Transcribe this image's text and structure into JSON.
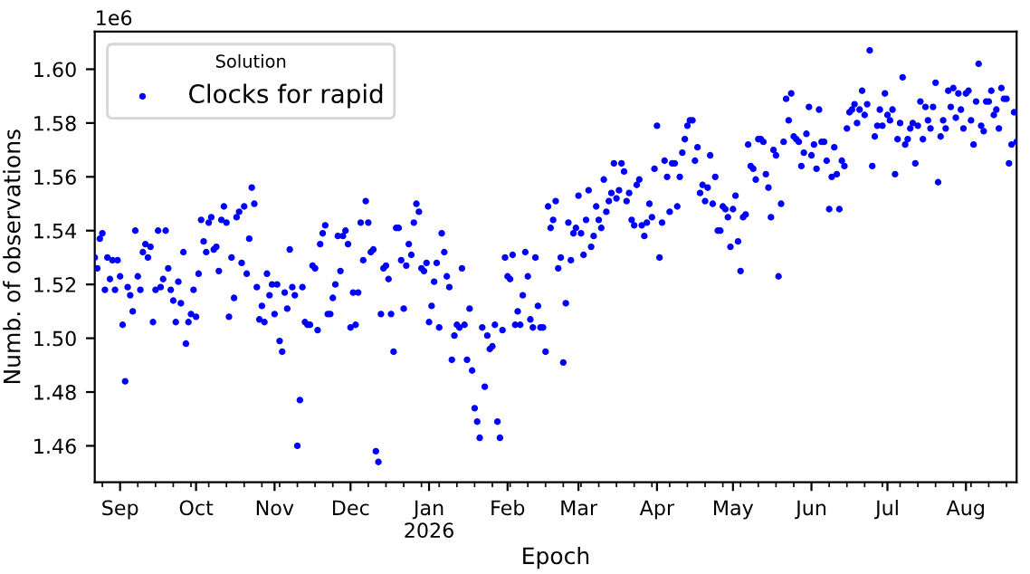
{
  "chart_data": {
    "type": "scatter",
    "xlabel": "Epoch",
    "ylabel": "Numb. of observations",
    "legend_title": "Solution",
    "legend": "top left",
    "marker": "circle",
    "grid": false,
    "annotations": [
      "1e6"
    ],
    "xlim": [
      "2025-08-22",
      "2026-08-21"
    ],
    "xticks": [
      {
        "value": "2025-09-01",
        "label": "Sep"
      },
      {
        "value": "2025-10-01",
        "label": "Oct"
      },
      {
        "value": "2025-11-01",
        "label": "Nov"
      },
      {
        "value": "2025-12-01",
        "label": "Dec"
      },
      {
        "value": "2026-01-01",
        "label": "Jan\n2026"
      },
      {
        "value": "2026-02-01",
        "label": "Feb"
      },
      {
        "value": "2026-03-01",
        "label": "Mar"
      },
      {
        "value": "2026-04-01",
        "label": "Apr"
      },
      {
        "value": "2026-05-01",
        "label": "May"
      },
      {
        "value": "2026-06-01",
        "label": "Jun"
      },
      {
        "value": "2026-07-01",
        "label": "Jul"
      },
      {
        "value": "2026-08-01",
        "label": "Aug"
      }
    ],
    "ylim": [
      1.4465,
      1.614
    ],
    "yticks": [
      {
        "value": 1.46,
        "label": "1.46"
      },
      {
        "value": 1.48,
        "label": "1.48"
      },
      {
        "value": 1.5,
        "label": "1.50"
      },
      {
        "value": 1.52,
        "label": "1.52"
      },
      {
        "value": 1.54,
        "label": "1.54"
      },
      {
        "value": 1.56,
        "label": "1.56"
      },
      {
        "value": 1.58,
        "label": "1.58"
      },
      {
        "value": 1.6,
        "label": "1.60"
      }
    ],
    "series": [
      {
        "name": "Clocks for rapid",
        "color": "#0000ff",
        "x": [
          "2025-08-22",
          "2025-08-23",
          "2025-08-24",
          "2025-08-25",
          "2025-08-26",
          "2025-08-27",
          "2025-08-28",
          "2025-08-29",
          "2025-08-30",
          "2025-08-31",
          "2025-09-01",
          "2025-09-02",
          "2025-09-03",
          "2025-09-04",
          "2025-09-05",
          "2025-09-06",
          "2025-09-07",
          "2025-09-08",
          "2025-09-09",
          "2025-09-10",
          "2025-09-11",
          "2025-09-12",
          "2025-09-13",
          "2025-09-14",
          "2025-09-15",
          "2025-09-16",
          "2025-09-17",
          "2025-09-18",
          "2025-09-19",
          "2025-09-20",
          "2025-09-21",
          "2025-09-22",
          "2025-09-23",
          "2025-09-24",
          "2025-09-25",
          "2025-09-26",
          "2025-09-27",
          "2025-09-28",
          "2025-09-29",
          "2025-09-30",
          "2025-10-01",
          "2025-10-02",
          "2025-10-03",
          "2025-10-04",
          "2025-10-05",
          "2025-10-06",
          "2025-10-07",
          "2025-10-08",
          "2025-10-09",
          "2025-10-10",
          "2025-10-11",
          "2025-10-12",
          "2025-10-13",
          "2025-10-14",
          "2025-10-15",
          "2025-10-16",
          "2025-10-17",
          "2025-10-18",
          "2025-10-19",
          "2025-10-20",
          "2025-10-21",
          "2025-10-22",
          "2025-10-23",
          "2025-10-24",
          "2025-10-25",
          "2025-10-26",
          "2025-10-27",
          "2025-10-28",
          "2025-10-29",
          "2025-10-30",
          "2025-10-31",
          "2025-11-01",
          "2025-11-02",
          "2025-11-03",
          "2025-11-04",
          "2025-11-05",
          "2025-11-06",
          "2025-11-07",
          "2025-11-08",
          "2025-11-09",
          "2025-11-10",
          "2025-11-11",
          "2025-11-12",
          "2025-11-13",
          "2025-11-14",
          "2025-11-15",
          "2025-11-16",
          "2025-11-17",
          "2025-11-18",
          "2025-11-19",
          "2025-11-20",
          "2025-11-21",
          "2025-11-22",
          "2025-11-23",
          "2025-11-24",
          "2025-11-25",
          "2025-11-26",
          "2025-11-27",
          "2025-11-28",
          "2025-11-29",
          "2025-11-30",
          "2025-12-01",
          "2025-12-02",
          "2025-12-03",
          "2025-12-04",
          "2025-12-05",
          "2025-12-06",
          "2025-12-07",
          "2025-12-08",
          "2025-12-09",
          "2025-12-10",
          "2025-12-11",
          "2025-12-12",
          "2025-12-13",
          "2025-12-14",
          "2025-12-15",
          "2025-12-16",
          "2025-12-17",
          "2025-12-18",
          "2025-12-19",
          "2025-12-20",
          "2025-12-21",
          "2025-12-22",
          "2025-12-23",
          "2025-12-24",
          "2025-12-25",
          "2025-12-26",
          "2025-12-27",
          "2025-12-28",
          "2025-12-29",
          "2025-12-30",
          "2025-12-31",
          "2026-01-01",
          "2026-01-02",
          "2026-01-03",
          "2026-01-04",
          "2026-01-05",
          "2026-01-06",
          "2026-01-07",
          "2026-01-08",
          "2026-01-09",
          "2026-01-10",
          "2026-01-11",
          "2026-01-12",
          "2026-01-13",
          "2026-01-14",
          "2026-01-15",
          "2026-01-16",
          "2026-01-17",
          "2026-01-18",
          "2026-01-19",
          "2026-01-20",
          "2026-01-21",
          "2026-01-22",
          "2026-01-23",
          "2026-01-24",
          "2026-01-25",
          "2026-01-26",
          "2026-01-27",
          "2026-01-28",
          "2026-01-29",
          "2026-01-30",
          "2026-01-31",
          "2026-02-01",
          "2026-02-02",
          "2026-02-03",
          "2026-02-04",
          "2026-02-05",
          "2026-02-06",
          "2026-02-07",
          "2026-02-08",
          "2026-02-09",
          "2026-02-10",
          "2026-02-11",
          "2026-02-12",
          "2026-02-13",
          "2026-02-14",
          "2026-02-15",
          "2026-02-16",
          "2026-02-17",
          "2026-02-18",
          "2026-02-19",
          "2026-02-20",
          "2026-02-21",
          "2026-02-22",
          "2026-02-23",
          "2026-02-24",
          "2026-02-25",
          "2026-02-26",
          "2026-02-27",
          "2026-02-28",
          "2026-03-01",
          "2026-03-02",
          "2026-03-03",
          "2026-03-04",
          "2026-03-05",
          "2026-03-06",
          "2026-03-07",
          "2026-03-08",
          "2026-03-09",
          "2026-03-10",
          "2026-03-11",
          "2026-03-12",
          "2026-03-13",
          "2026-03-14",
          "2026-03-15",
          "2026-03-16",
          "2026-03-17",
          "2026-03-18",
          "2026-03-19",
          "2026-03-20",
          "2026-03-21",
          "2026-03-22",
          "2026-03-23",
          "2026-03-24",
          "2026-03-25",
          "2026-03-26",
          "2026-03-27",
          "2026-03-28",
          "2026-03-29",
          "2026-03-30",
          "2026-03-31",
          "2026-04-01",
          "2026-04-02",
          "2026-04-03",
          "2026-04-04",
          "2026-04-05",
          "2026-04-06",
          "2026-04-07",
          "2026-04-08",
          "2026-04-09",
          "2026-04-10",
          "2026-04-11",
          "2026-04-12",
          "2026-04-13",
          "2026-04-14",
          "2026-04-15",
          "2026-04-16",
          "2026-04-17",
          "2026-04-18",
          "2026-04-19",
          "2026-04-20",
          "2026-04-21",
          "2026-04-22",
          "2026-04-23",
          "2026-04-24",
          "2026-04-25",
          "2026-04-26",
          "2026-04-27",
          "2026-04-28",
          "2026-04-29",
          "2026-04-30",
          "2026-05-01",
          "2026-05-02",
          "2026-05-03",
          "2026-05-04",
          "2026-05-05",
          "2026-05-06",
          "2026-05-07",
          "2026-05-08",
          "2026-05-09",
          "2026-05-10",
          "2026-05-11",
          "2026-05-12",
          "2026-05-13",
          "2026-05-14",
          "2026-05-15",
          "2026-05-16",
          "2026-05-17",
          "2026-05-18",
          "2026-05-19",
          "2026-05-20",
          "2026-05-21",
          "2026-05-22",
          "2026-05-23",
          "2026-05-24",
          "2026-05-25",
          "2026-05-26",
          "2026-05-27",
          "2026-05-28",
          "2026-05-29",
          "2026-05-30",
          "2026-05-31",
          "2026-06-01",
          "2026-06-02",
          "2026-06-03",
          "2026-06-04",
          "2026-06-05",
          "2026-06-06",
          "2026-06-07",
          "2026-06-08",
          "2026-06-09",
          "2026-06-10",
          "2026-06-11",
          "2026-06-12",
          "2026-06-13",
          "2026-06-14",
          "2026-06-15",
          "2026-06-16",
          "2026-06-17",
          "2026-06-18",
          "2026-06-19",
          "2026-06-20",
          "2026-06-21",
          "2026-06-22",
          "2026-06-23",
          "2026-06-24",
          "2026-06-25",
          "2026-06-26",
          "2026-06-27",
          "2026-06-28",
          "2026-06-29",
          "2026-06-30",
          "2026-07-01",
          "2026-07-02",
          "2026-07-03",
          "2026-07-04",
          "2026-07-05",
          "2026-07-06",
          "2026-07-07",
          "2026-07-08",
          "2026-07-09",
          "2026-07-10",
          "2026-07-11",
          "2026-07-12",
          "2026-07-13",
          "2026-07-14",
          "2026-07-15",
          "2026-07-16",
          "2026-07-17",
          "2026-07-18",
          "2026-07-19",
          "2026-07-20",
          "2026-07-21",
          "2026-07-22",
          "2026-07-23",
          "2026-07-24",
          "2026-07-25",
          "2026-07-26",
          "2026-07-27",
          "2026-07-28",
          "2026-07-29",
          "2026-07-30",
          "2026-07-31",
          "2026-08-01",
          "2026-08-02",
          "2026-08-03",
          "2026-08-04",
          "2026-08-05",
          "2026-08-06",
          "2026-08-07",
          "2026-08-08",
          "2026-08-09",
          "2026-08-10",
          "2026-08-11",
          "2026-08-12",
          "2026-08-13",
          "2026-08-14",
          "2026-08-15",
          "2026-08-16",
          "2026-08-17",
          "2026-08-18",
          "2026-08-19",
          "2026-08-20",
          "2026-08-21"
        ],
        "values": [
          1.53,
          1.526,
          1.537,
          1.539,
          1.518,
          1.53,
          1.522,
          1.529,
          1.518,
          1.529,
          1.523,
          1.505,
          1.484,
          1.519,
          1.516,
          1.51,
          1.54,
          1.523,
          1.518,
          1.532,
          1.535,
          1.53,
          1.534,
          1.506,
          1.518,
          1.54,
          1.519,
          1.522,
          1.54,
          1.526,
          1.518,
          1.514,
          1.506,
          1.521,
          1.513,
          1.532,
          1.498,
          1.506,
          1.509,
          1.518,
          1.508,
          1.524,
          1.544,
          1.536,
          1.532,
          1.543,
          1.545,
          1.533,
          1.534,
          1.525,
          1.544,
          1.549,
          1.543,
          1.508,
          1.53,
          1.515,
          1.545,
          1.547,
          1.528,
          1.549,
          1.524,
          1.537,
          1.556,
          1.55,
          1.519,
          1.507,
          1.512,
          1.506,
          1.524,
          1.516,
          1.52,
          1.509,
          1.52,
          1.499,
          1.495,
          1.517,
          1.511,
          1.533,
          1.519,
          1.516,
          1.46,
          1.477,
          1.519,
          1.506,
          1.505,
          1.505,
          1.527,
          1.526,
          1.503,
          1.535,
          1.539,
          1.542,
          1.509,
          1.509,
          1.515,
          1.52,
          1.538,
          1.525,
          1.538,
          1.54,
          1.535,
          1.504,
          1.517,
          1.505,
          1.517,
          1.543,
          1.529,
          1.551,
          1.543,
          1.532,
          1.533,
          1.458,
          1.454,
          1.509,
          1.526,
          1.527,
          1.522,
          1.509,
          1.495,
          1.541,
          1.541,
          1.529,
          1.511,
          1.527,
          1.535,
          1.531,
          1.543,
          1.55,
          1.547,
          1.526,
          1.525,
          1.528,
          1.506,
          1.512,
          1.521,
          1.528,
          1.504,
          1.539,
          1.532,
          1.523,
          1.519,
          1.492,
          1.501,
          1.505,
          1.504,
          1.526,
          1.505,
          1.492,
          1.511,
          1.488,
          1.474,
          1.469,
          1.463,
          1.504,
          1.482,
          1.501,
          1.496,
          1.497,
          1.505,
          1.469,
          1.463,
          1.503,
          1.53,
          1.523,
          1.522,
          1.531,
          1.505,
          1.51,
          1.505,
          1.516,
          1.532,
          1.523,
          1.507,
          1.504,
          1.53,
          1.512,
          1.504,
          1.504,
          1.495,
          1.549,
          1.541,
          1.544,
          1.551,
          1.526,
          1.53,
          1.491,
          1.513,
          1.543,
          1.529,
          1.539,
          1.541,
          1.553,
          1.539,
          1.531,
          1.544,
          1.555,
          1.534,
          1.538,
          1.549,
          1.544,
          1.541,
          1.559,
          1.547,
          1.551,
          1.554,
          1.565,
          1.552,
          1.555,
          1.565,
          1.562,
          1.551,
          1.554,
          1.544,
          1.542,
          1.557,
          1.559,
          1.542,
          1.538,
          1.543,
          1.55,
          1.545,
          1.563,
          1.579,
          1.53,
          1.543,
          1.566,
          1.56,
          1.547,
          1.565,
          1.565,
          1.549,
          1.56,
          1.569,
          1.574,
          1.579,
          1.581,
          1.581,
          1.566,
          1.571,
          1.554,
          1.557,
          1.551,
          1.556,
          1.568,
          1.55,
          1.56,
          1.54,
          1.54,
          1.549,
          1.548,
          1.545,
          1.534,
          1.548,
          1.553,
          1.536,
          1.525,
          1.545,
          1.546,
          1.572,
          1.564,
          1.563,
          1.559,
          1.574,
          1.574,
          1.573,
          1.561,
          1.556,
          1.545,
          1.57,
          1.568,
          1.523,
          1.55,
          1.573,
          1.589,
          1.581,
          1.591,
          1.575,
          1.574,
          1.573,
          1.564,
          1.569,
          1.576,
          1.586,
          1.568,
          1.572,
          1.563,
          1.585,
          1.573,
          1.573,
          1.566,
          1.548,
          1.56,
          1.571,
          1.561,
          1.548,
          1.566,
          1.564,
          1.578,
          1.584,
          1.585,
          1.587,
          1.58,
          1.585,
          1.592,
          1.583,
          1.587,
          1.607,
          1.564,
          1.575,
          1.579,
          1.585,
          1.579,
          1.591,
          1.583,
          1.581,
          1.585,
          1.561,
          1.574,
          1.58,
          1.597,
          1.572,
          1.574,
          1.578,
          1.58,
          1.565,
          1.579,
          1.588,
          1.574,
          1.586,
          1.581,
          1.578,
          1.586,
          1.595,
          1.558,
          1.575,
          1.581,
          1.578,
          1.592,
          1.586,
          1.593,
          1.582,
          1.591,
          1.585,
          1.578,
          1.591,
          1.592,
          1.581,
          1.572,
          1.588,
          1.602,
          1.579,
          1.577,
          1.588,
          1.588,
          1.592,
          1.583,
          1.585,
          1.578,
          1.593,
          1.589,
          1.589,
          1.565,
          1.572,
          1.584,
          1.573
        ]
      }
    ]
  }
}
